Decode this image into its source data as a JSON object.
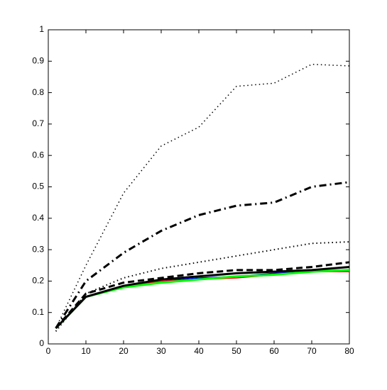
{
  "chart_data": {
    "type": "line",
    "x": [
      2,
      10,
      20,
      30,
      40,
      50,
      60,
      70,
      80
    ],
    "series": [
      {
        "color": "#0000ff",
        "style": "solid",
        "width": 1.5,
        "values": [
          0.05,
          0.15,
          0.18,
          0.2,
          0.21,
          0.215,
          0.225,
          0.23,
          0.235
        ]
      },
      {
        "color": "#ff0000",
        "style": "solid",
        "width": 1.5,
        "values": [
          0.05,
          0.15,
          0.18,
          0.2,
          0.205,
          0.21,
          0.22,
          0.23,
          0.23
        ]
      },
      {
        "color": "#00ff00",
        "style": "solid",
        "width": 3,
        "values": [
          0.05,
          0.15,
          0.18,
          0.195,
          0.205,
          0.215,
          0.22,
          0.23,
          0.235
        ]
      },
      {
        "color": "#000000",
        "style": "dotted",
        "width": 1.5,
        "values": [
          0.05,
          0.25,
          0.48,
          0.63,
          0.69,
          0.82,
          0.83,
          0.89,
          0.885
        ]
      },
      {
        "color": "#000000",
        "style": "dashdot",
        "width": 3,
        "values": [
          0.05,
          0.2,
          0.29,
          0.36,
          0.41,
          0.44,
          0.45,
          0.5,
          0.515
        ]
      },
      {
        "color": "#000000",
        "style": "dotted",
        "width": 2,
        "values": [
          0.04,
          0.16,
          0.21,
          0.24,
          0.26,
          0.28,
          0.3,
          0.32,
          0.325
        ]
      },
      {
        "color": "#000000",
        "style": "dashed",
        "width": 3,
        "values": [
          0.05,
          0.16,
          0.195,
          0.21,
          0.225,
          0.235,
          0.235,
          0.245,
          0.26
        ]
      },
      {
        "color": "#000000",
        "style": "solid",
        "width": 3,
        "values": [
          0.05,
          0.15,
          0.185,
          0.205,
          0.215,
          0.225,
          0.23,
          0.235,
          0.245
        ]
      }
    ],
    "xlim": [
      0,
      80
    ],
    "xticks": [
      0,
      10,
      20,
      30,
      40,
      50,
      60,
      70,
      80
    ],
    "ylim": [
      0,
      1
    ],
    "yticks": [
      0,
      0.1,
      0.2,
      0.3,
      0.4,
      0.5,
      0.6,
      0.7,
      0.8,
      0.9,
      1
    ],
    "grid": false
  }
}
